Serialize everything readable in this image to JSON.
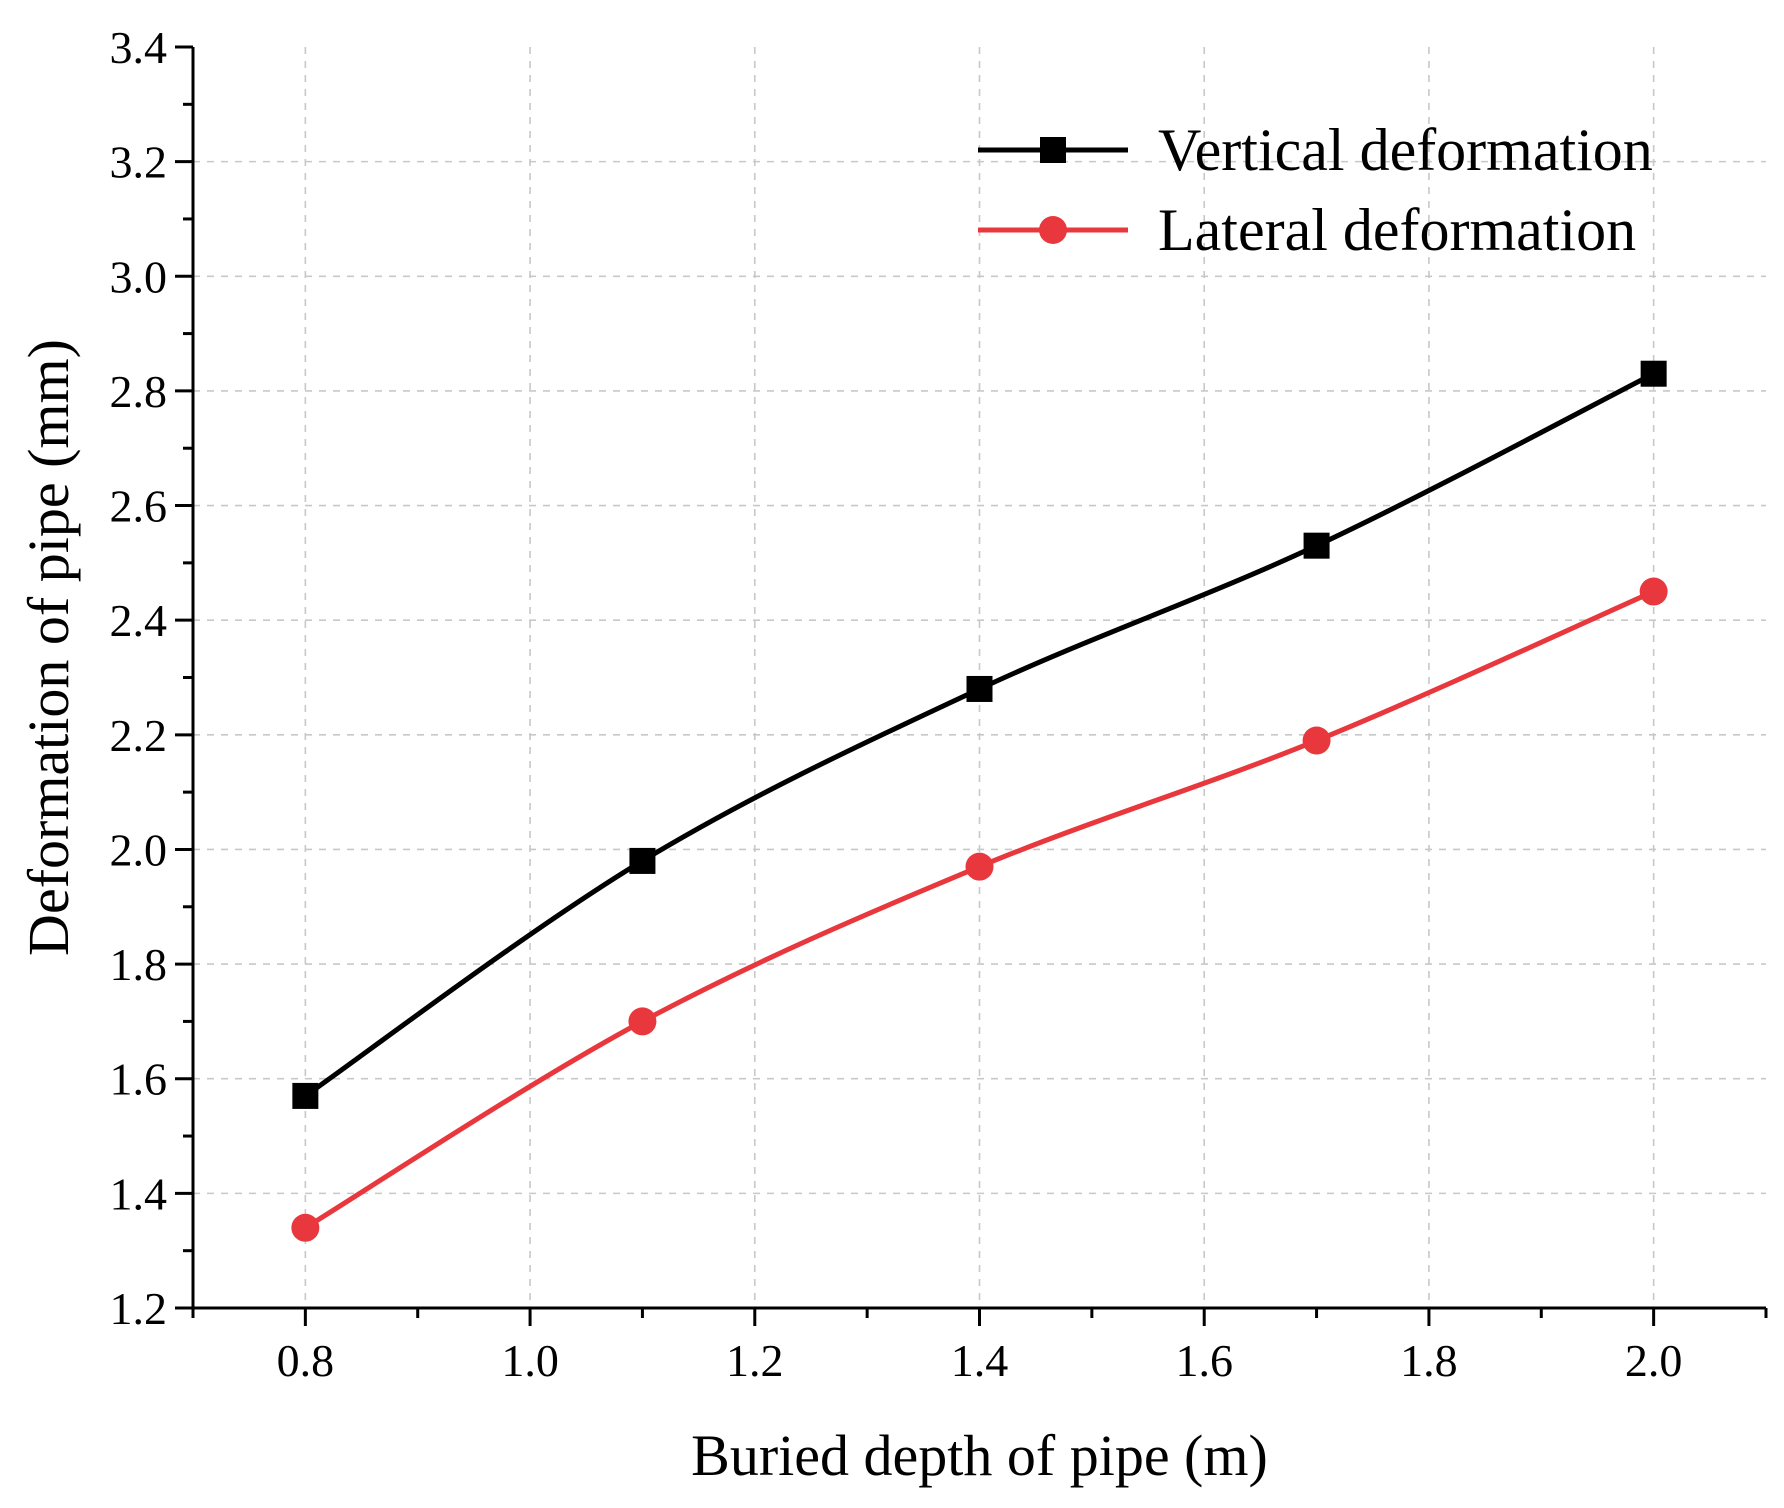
{
  "chart_data": {
    "type": "line",
    "title": "",
    "xlabel": "Buried depth of pipe (m)",
    "ylabel": "Deformation of pipe (mm)",
    "xlim": [
      0.7,
      2.1
    ],
    "ylim": [
      1.2,
      3.4
    ],
    "x_ticks": [
      0.8,
      1.0,
      1.2,
      1.4,
      1.6,
      1.8,
      2.0
    ],
    "x_tick_labels": [
      "0.8",
      "1.0",
      "1.2",
      "1.4",
      "1.6",
      "1.8",
      "2.0"
    ],
    "y_ticks": [
      1.2,
      1.4,
      1.6,
      1.8,
      2.0,
      2.2,
      2.4,
      2.6,
      2.8,
      3.0,
      3.2,
      3.4
    ],
    "y_tick_labels": [
      "1.2",
      "1.4",
      "1.6",
      "1.8",
      "2.0",
      "2.2",
      "2.4",
      "2.6",
      "2.8",
      "3.0",
      "3.2",
      "3.4"
    ],
    "grid": true,
    "legend_position": "top-right",
    "x": [
      0.8,
      1.1,
      1.4,
      1.7,
      2.0
    ],
    "series": [
      {
        "name": "Vertical deformation",
        "values": [
          1.57,
          1.98,
          2.28,
          2.53,
          2.83
        ],
        "color": "#000000",
        "marker": "square"
      },
      {
        "name": "Lateral deformation",
        "values": [
          1.34,
          1.7,
          1.97,
          2.19,
          2.45
        ],
        "color": "#e8383d",
        "marker": "circle"
      }
    ]
  }
}
